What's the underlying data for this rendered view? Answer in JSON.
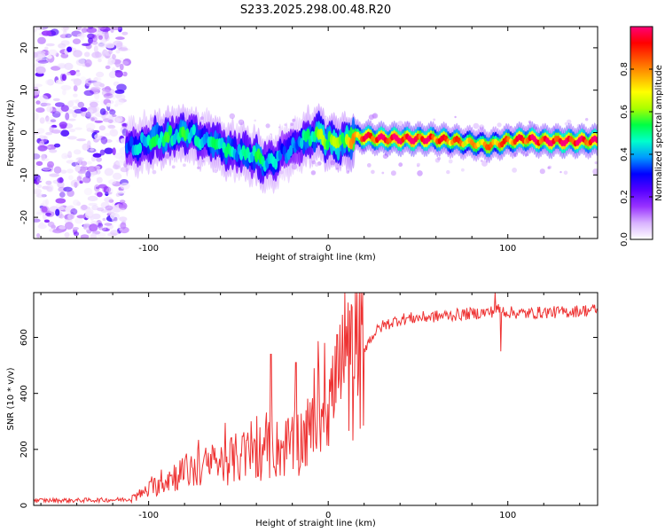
{
  "title": "S233.2025.298.00.48.R20",
  "chart_data": [
    {
      "type": "heatmap",
      "xlabel": "Height of straight line (km)",
      "ylabel": "Frequency (Hz)",
      "xlim": [
        -164,
        150
      ],
      "ylim": [
        -25,
        25
      ],
      "xticks": [
        -100,
        0,
        100
      ],
      "yticks": [
        -20,
        -10,
        0,
        10,
        20
      ],
      "colorbar": {
        "label": "Normalized spectral amplitude",
        "range": [
          0,
          1
        ],
        "ticks": [
          "0.0",
          "0.2",
          "0.4",
          "0.6",
          "0.8"
        ],
        "colors": [
          "#ffffff",
          "#d9b3ff",
          "#9933ff",
          "#5500ff",
          "#0000ff",
          "#0099ff",
          "#00ffcc",
          "#00ff44",
          "#aaff00",
          "#ffff00",
          "#ffaa00",
          "#ff5500",
          "#ff0000",
          "#ff0077"
        ]
      },
      "ridge": {
        "x": [
          -112,
          -105,
          -100,
          -95,
          -90,
          -85,
          -80,
          -75,
          -70,
          -65,
          -60,
          -55,
          -50,
          -45,
          -40,
          -35,
          -30,
          -25,
          -20,
          -15,
          -10,
          -5,
          0,
          5,
          10,
          15,
          20,
          30,
          40,
          50,
          60,
          70,
          80,
          90,
          100,
          110,
          120,
          130,
          140,
          150
        ],
        "freq": [
          -3.5,
          -3,
          -2,
          -1.5,
          -1,
          -0.5,
          -0.5,
          -1,
          -1.5,
          -2,
          -3,
          -4,
          -4.5,
          -5,
          -6,
          -7,
          -6.5,
          -5,
          -3.5,
          -2,
          -1,
          -0.5,
          -2,
          -3,
          -2,
          -1,
          -1,
          -1.5,
          -1.5,
          -1.5,
          -1.5,
          -2,
          -2.5,
          -3,
          -2,
          -1.5,
          -2,
          -2,
          -2,
          -2
        ],
        "amplitude": [
          0.35,
          0.4,
          0.45,
          0.5,
          0.5,
          0.45,
          0.5,
          0.45,
          0.4,
          0.45,
          0.5,
          0.45,
          0.4,
          0.45,
          0.5,
          0.45,
          0.4,
          0.35,
          0.35,
          0.4,
          0.5,
          0.55,
          0.6,
          0.55,
          0.6,
          0.75,
          0.85,
          0.9,
          0.95,
          0.92,
          0.85,
          0.8,
          0.7,
          0.75,
          0.8,
          0.88,
          0.9,
          0.92,
          0.9,
          0.88
        ]
      },
      "noise_region_x": [
        -164,
        -112
      ]
    },
    {
      "type": "line",
      "xlabel": "Height of straight line (km)",
      "ylabel": "SNR (10 * v/v)",
      "xlim": [
        -164,
        150
      ],
      "ylim": [
        0,
        760
      ],
      "xticks": [
        -100,
        0,
        100
      ],
      "yticks": [
        0,
        200,
        400,
        600
      ],
      "color": "#ee3333",
      "envelope": {
        "x": [
          -164,
          -140,
          -120,
          -110,
          -100,
          -90,
          -80,
          -70,
          -60,
          -50,
          -40,
          -30,
          -20,
          -10,
          0,
          10,
          20,
          25,
          30,
          40,
          60,
          80,
          90,
          95,
          100,
          110,
          120,
          130,
          140,
          150
        ],
        "y": [
          18,
          18,
          20,
          22,
          55,
          95,
          120,
          135,
          150,
          170,
          190,
          200,
          215,
          260,
          380,
          470,
          560,
          610,
          640,
          665,
          675,
          685,
          690,
          700,
          690,
          685,
          690,
          690,
          695,
          700
        ]
      },
      "spikes": {
        "x": [
          -32,
          -18,
          -8,
          -2,
          5,
          93,
          96
        ],
        "y": [
          540,
          510,
          490,
          580,
          610,
          760,
          550
        ]
      }
    }
  ]
}
